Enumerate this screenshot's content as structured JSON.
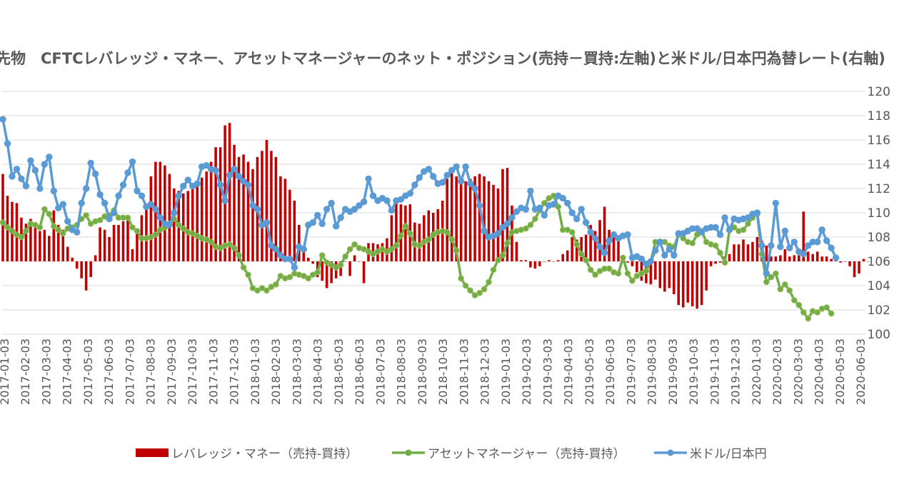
{
  "chart_data": {
    "type": "bar+line",
    "title": "先物　CFTCレバレッジ・マネー、アセットマネージャーのネット・ポジション(売持－買持:左軸)と米ドル/日本円為替レート(右軸)",
    "right_axis": {
      "min": 100,
      "max": 120,
      "step": 2,
      "ticks": [
        "100",
        "102",
        "104",
        "106",
        "108",
        "110",
        "112",
        "114",
        "116",
        "118",
        "120"
      ]
    },
    "x_tick_labels": [
      "2017-01-03",
      "2017-02-03",
      "2017-03-03",
      "2017-04-03",
      "2017-05-03",
      "2017-06-03",
      "2017-07-03",
      "2017-08-03",
      "2017-09-03",
      "2017-10-03",
      "2017-11-03",
      "2017-12-03",
      "2018-01-03",
      "2018-02-03",
      "2018-03-03",
      "2018-04-03",
      "2018-05-03",
      "2018-06-03",
      "2018-07-03",
      "2018-08-03",
      "2018-09-03",
      "2018-10-03",
      "2018-11-03",
      "2018-12-03",
      "2019-01-03",
      "2019-02-03",
      "2019-03-03",
      "2019-04-03",
      "2019-05-03",
      "2019-06-03",
      "2019-07-03",
      "2019-08-03",
      "2019-09-03",
      "2019-10-03",
      "2019-11-03",
      "2019-12-03",
      "2020-01-03",
      "2020-02-03",
      "2020-03-03",
      "2020-04-03",
      "2020-05-03",
      "2020-06-03"
    ],
    "grid": true,
    "legend_position": "bottom",
    "series": [
      {
        "name": "レバレッジ・マネー（売持-買持）",
        "kind": "bar",
        "color": "#c00000",
        "values": [
          113.2,
          111.4,
          110.9,
          110.8,
          109.6,
          109.1,
          109.5,
          109.0,
          108.5,
          108.6,
          108.1,
          110.2,
          109.0,
          108.6,
          107.2,
          106.3,
          105.4,
          104.6,
          103.6,
          104.7,
          106.5,
          108.8,
          108.6,
          108.0,
          109.0,
          109.0,
          109.3,
          109.6,
          107.0,
          108.3,
          109.8,
          110.6,
          113.0,
          114.2,
          114.2,
          113.9,
          113.2,
          112.0,
          111.8,
          111.6,
          111.8,
          112.2,
          112.5,
          112.9,
          113.4,
          114.2,
          115.4,
          115.4,
          117.2,
          117.4,
          115.6,
          114.6,
          114.8,
          114.2,
          113.6,
          114.6,
          115.1,
          116.0,
          115.1,
          114.6,
          113.0,
          112.8,
          111.9,
          111.0,
          109.0,
          107.2,
          106.3,
          105.8,
          104.7,
          104.4,
          103.8,
          104.2,
          104.6,
          104.8,
          106.0,
          104.8,
          106.5,
          106.0,
          104.2,
          107.5,
          107.5,
          107.4,
          107.5,
          107.9,
          109.8,
          110.9,
          110.7,
          110.6,
          110.7,
          109.2,
          109.1,
          109.8,
          110.2,
          110.0,
          110.3,
          111.0,
          112.8,
          113.7,
          113.0,
          112.4,
          112.6,
          112.8,
          113.0,
          113.2,
          113.0,
          112.6,
          112.3,
          112.0,
          113.6,
          113.7,
          110.6,
          107.6,
          106.1,
          106.1,
          105.5,
          105.4,
          105.6,
          106.0,
          106.1,
          106.0,
          106.1,
          106.6,
          106.9,
          108.0,
          107.8,
          108.0,
          108.2,
          109.0,
          108.5,
          109.4,
          110.5,
          108.6,
          108.0,
          108.0,
          106.4,
          105.9,
          105.6,
          105.1,
          104.4,
          104.2,
          104.1,
          104.5,
          103.8,
          103.5,
          103.8,
          103.3,
          102.4,
          102.2,
          102.6,
          102.3,
          102.1,
          102.4,
          103.6,
          105.6,
          105.8,
          105.9,
          106.4,
          106.6,
          107.4,
          107.4,
          107.8,
          107.4,
          107.6,
          108.0,
          107.7,
          107.3,
          106.4,
          106.4,
          106.5,
          107.0,
          106.4,
          106.5,
          106.5,
          110.1,
          106.8,
          106.6,
          106.8,
          106.4,
          106.4,
          106.2,
          106.3,
          105.9,
          106.0,
          105.6,
          104.7,
          105.0,
          106.2,
          106.0
        ]
      },
      {
        "name": "アセットマネージャー（売持-買持）",
        "kind": "line",
        "color": "#70ad47",
        "values": [
          109.2,
          108.8,
          108.5,
          108.2,
          108.0,
          108.5,
          109.1,
          109.0,
          108.8,
          110.3,
          109.9,
          108.9,
          108.6,
          108.3,
          108.7,
          108.8,
          109.0,
          109.5,
          109.8,
          109.1,
          109.3,
          109.4,
          109.7,
          109.8,
          110.2,
          109.6,
          109.6,
          109.6,
          108.8,
          108.5,
          107.9,
          107.9,
          108.0,
          108.2,
          108.6,
          108.8,
          109.1,
          109.5,
          109.0,
          108.7,
          108.4,
          108.3,
          108.1,
          107.9,
          107.8,
          107.6,
          107.2,
          107.1,
          107.3,
          107.4,
          107.1,
          106.5,
          105.5,
          104.9,
          103.8,
          103.6,
          103.8,
          103.6,
          103.9,
          104.1,
          104.8,
          104.6,
          104.7,
          105.0,
          104.9,
          104.8,
          104.6,
          104.9,
          105.1,
          106.5,
          105.9,
          105.7,
          105.5,
          105.7,
          106.4,
          107.0,
          107.4,
          107.1,
          107.0,
          106.8,
          106.6,
          106.8,
          107.0,
          106.8,
          107.0,
          107.3,
          108.1,
          108.9,
          108.3,
          107.4,
          107.3,
          107.6,
          107.8,
          108.2,
          108.4,
          108.5,
          108.4,
          107.8,
          106.9,
          104.6,
          104.0,
          103.6,
          103.2,
          103.4,
          103.7,
          104.3,
          105.3,
          106.1,
          106.5,
          107.5,
          108.4,
          108.5,
          108.6,
          108.7,
          109.0,
          109.5,
          110.2,
          110.8,
          111.2,
          111.4,
          110.5,
          108.6,
          108.6,
          108.4,
          107.4,
          106.6,
          106.1,
          105.3,
          104.9,
          105.2,
          105.4,
          105.4,
          105.1,
          105.0,
          106.3,
          105.0,
          104.4,
          104.8,
          105.0,
          105.2,
          106.0,
          107.6,
          107.6,
          107.6,
          107.3,
          107.2,
          108.2,
          107.9,
          107.6,
          107.5,
          108.2,
          108.5,
          107.6,
          107.4,
          107.3,
          106.7,
          105.9,
          108.6,
          108.8,
          108.5,
          108.6,
          109.1,
          109.6,
          109.9,
          106.6,
          104.3,
          104.7,
          105.0,
          103.7,
          104.1,
          103.6,
          102.8,
          102.4,
          101.8,
          101.3,
          101.9,
          101.8,
          102.1,
          102.2,
          101.7
        ]
      },
      {
        "name": "米ドル/日本円",
        "kind": "line",
        "color": "#5b9bd5",
        "values": [
          117.7,
          115.7,
          113.0,
          113.6,
          112.8,
          112.2,
          114.3,
          113.5,
          112.0,
          114.0,
          114.6,
          111.8,
          110.4,
          110.7,
          109.3,
          108.6,
          108.4,
          110.8,
          112.0,
          114.1,
          113.2,
          111.5,
          110.8,
          109.5,
          110.0,
          111.4,
          112.3,
          113.3,
          114.2,
          111.8,
          111.4,
          110.5,
          110.7,
          110.3,
          109.6,
          109.1,
          109.0,
          110.0,
          111.4,
          112.2,
          112.7,
          112.2,
          112.4,
          113.8,
          113.9,
          113.6,
          113.5,
          112.3,
          111.0,
          113.1,
          113.6,
          113.0,
          112.6,
          112.3,
          110.6,
          110.3,
          109.0,
          109.2,
          107.3,
          107.0,
          106.5,
          106.2,
          106.2,
          105.5,
          107.2,
          107.0,
          109.0,
          109.2,
          109.8,
          109.1,
          110.3,
          110.8,
          108.9,
          109.6,
          110.3,
          110.1,
          110.3,
          110.6,
          110.9,
          112.8,
          111.4,
          111.0,
          111.2,
          111.0,
          110.2,
          111.0,
          111.1,
          111.4,
          111.6,
          112.3,
          112.9,
          113.4,
          113.6,
          113.0,
          112.4,
          112.5,
          113.1,
          113.5,
          113.8,
          112.6,
          113.8,
          112.4,
          112.0,
          110.6,
          108.5,
          108.0,
          108.1,
          108.3,
          108.8,
          109.1,
          109.6,
          110.1,
          110.4,
          110.3,
          111.8,
          110.3,
          110.4,
          109.8,
          110.6,
          110.7,
          111.4,
          111.2,
          110.8,
          110.0,
          109.5,
          110.3,
          109.2,
          108.4,
          107.9,
          107.2,
          106.7,
          107.7,
          108.2,
          107.9,
          108.1,
          108.2,
          106.3,
          106.4,
          106.2,
          105.8,
          106.0,
          106.9,
          107.6,
          106.5,
          107.0,
          106.5,
          108.3,
          108.3,
          108.5,
          108.7,
          108.7,
          108.4,
          108.7,
          108.8,
          108.8,
          108.2,
          109.6,
          108.6,
          109.5,
          109.4,
          109.5,
          109.6,
          109.9,
          110.0,
          107.3,
          105.0,
          107.3,
          110.8,
          107.2,
          108.5,
          107.1,
          107.6,
          106.8,
          106.6,
          107.3,
          107.6,
          107.6,
          108.6,
          107.7,
          107.1,
          106.3
        ]
      }
    ]
  }
}
